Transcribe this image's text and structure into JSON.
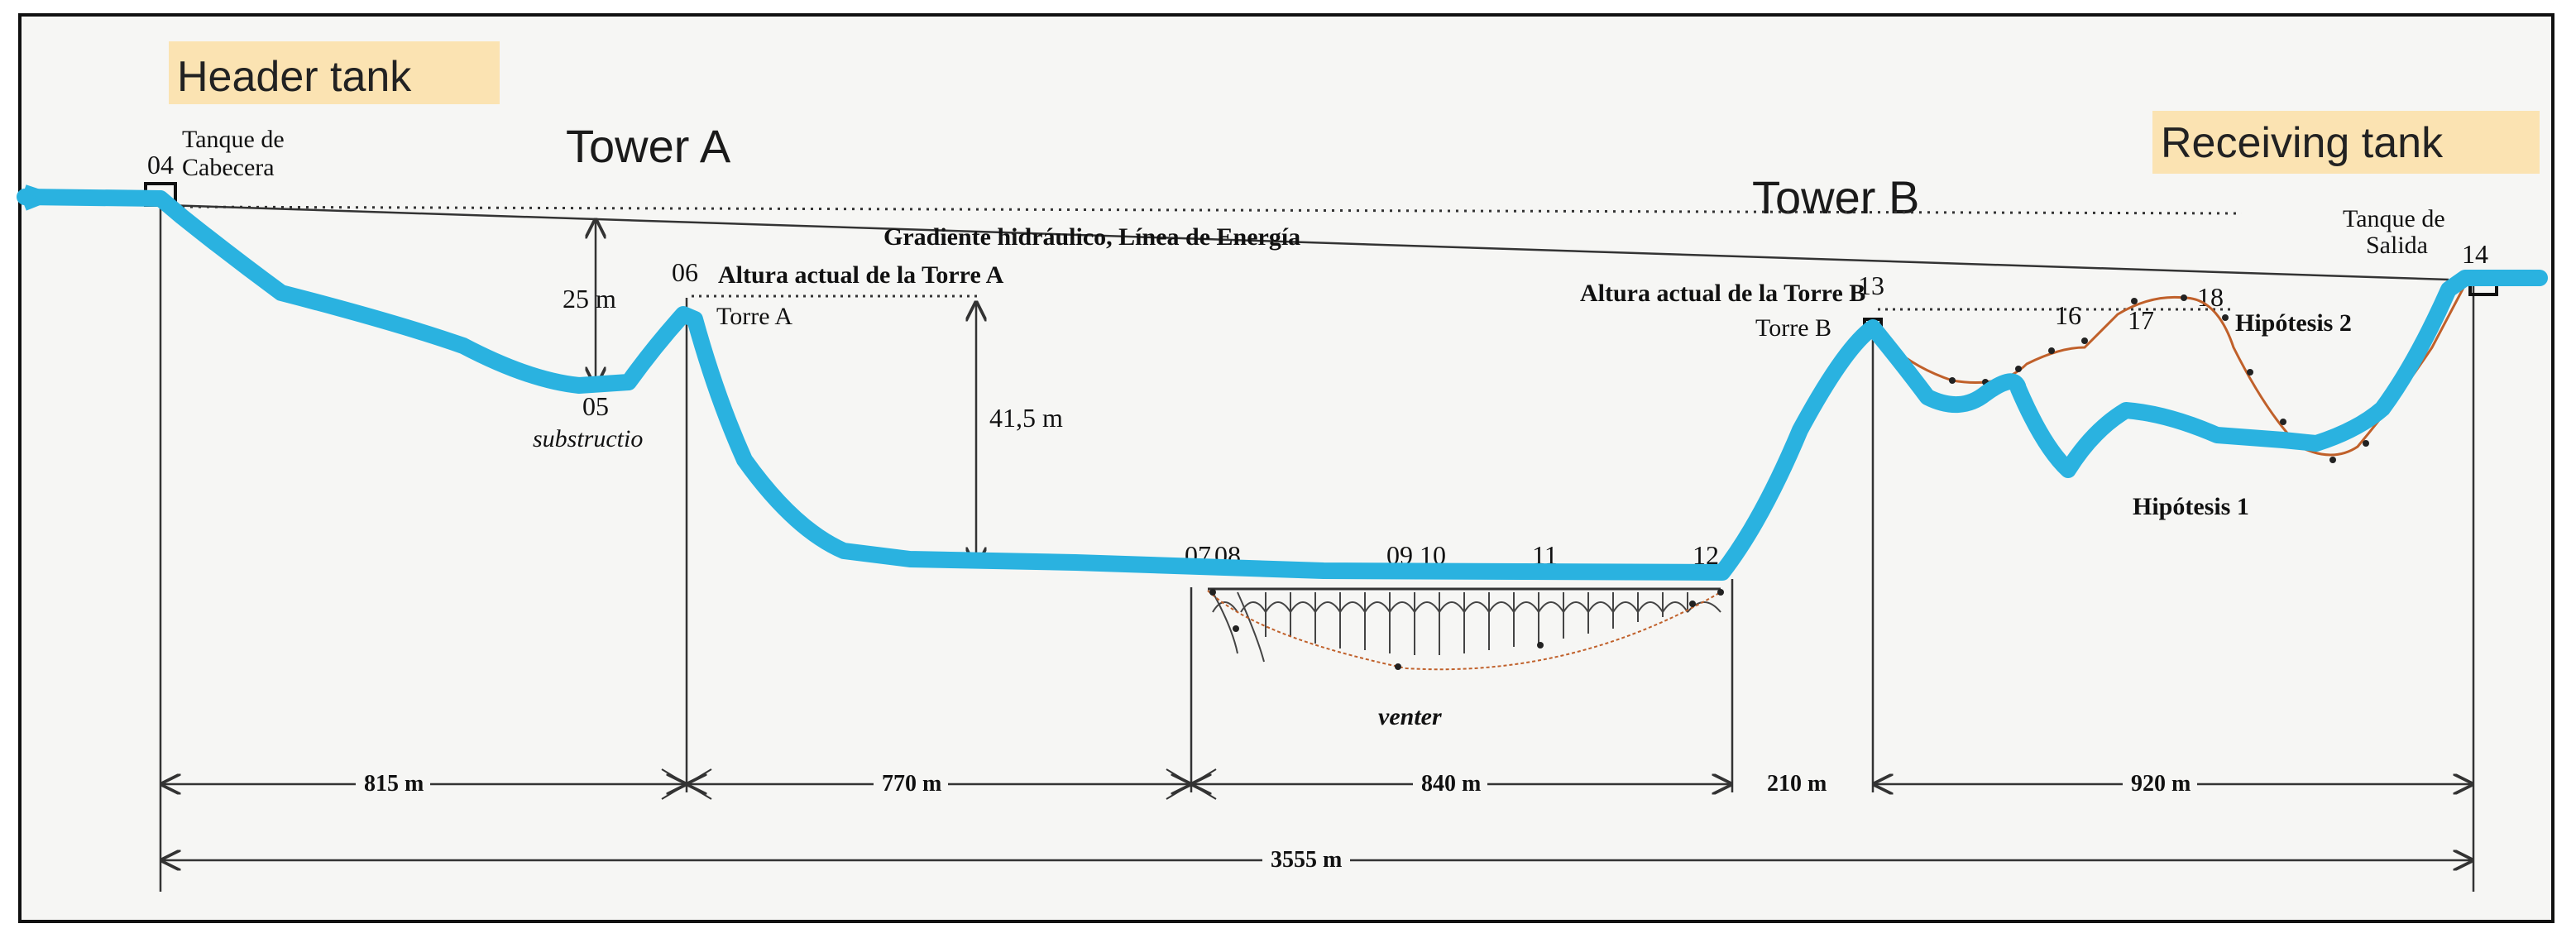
{
  "labels": {
    "header_tank": "Header tank",
    "receiving_tank": "Receiving tank",
    "tower_a": "Tower A",
    "tower_b": "Tower B",
    "tanque_cabecera_1": "Tanque de",
    "tanque_cabecera_2": "Cabecera",
    "tanque_salida_1": "Tanque de",
    "tanque_salida_2": "Salida",
    "gradiente": "Gradiente hidráulico, Línea de Energía",
    "altura_a": "Altura actual de la Torre A",
    "altura_b": "Altura actual de la Torre B",
    "torre_a": "Torre A",
    "torre_b": "Torre B",
    "substructio": "substructio",
    "venter": "venter",
    "hipotesis_1": "Hipótesis 1",
    "hipotesis_2": "Hipótesis 2"
  },
  "heights": {
    "h25": "25 m",
    "h41": "41,5 m"
  },
  "points": {
    "p04": "04",
    "p05": "05",
    "p06": "06",
    "p07": "07",
    "p08": "08",
    "p09": "09",
    "p10": "10",
    "p11": "11",
    "p12": "12",
    "p13": "13",
    "p14": "14",
    "p16": "16",
    "p17": "17",
    "p18": "18"
  },
  "distances": {
    "d1": "815 m",
    "d2": "770 m",
    "d3": "840 m",
    "d4": "210 m",
    "d5": "920 m",
    "total": "3555 m"
  },
  "colors": {
    "pipeline": "#2ab2e0",
    "highlight": "#fbe3b2",
    "hypothesis_2": "#c0602a"
  }
}
